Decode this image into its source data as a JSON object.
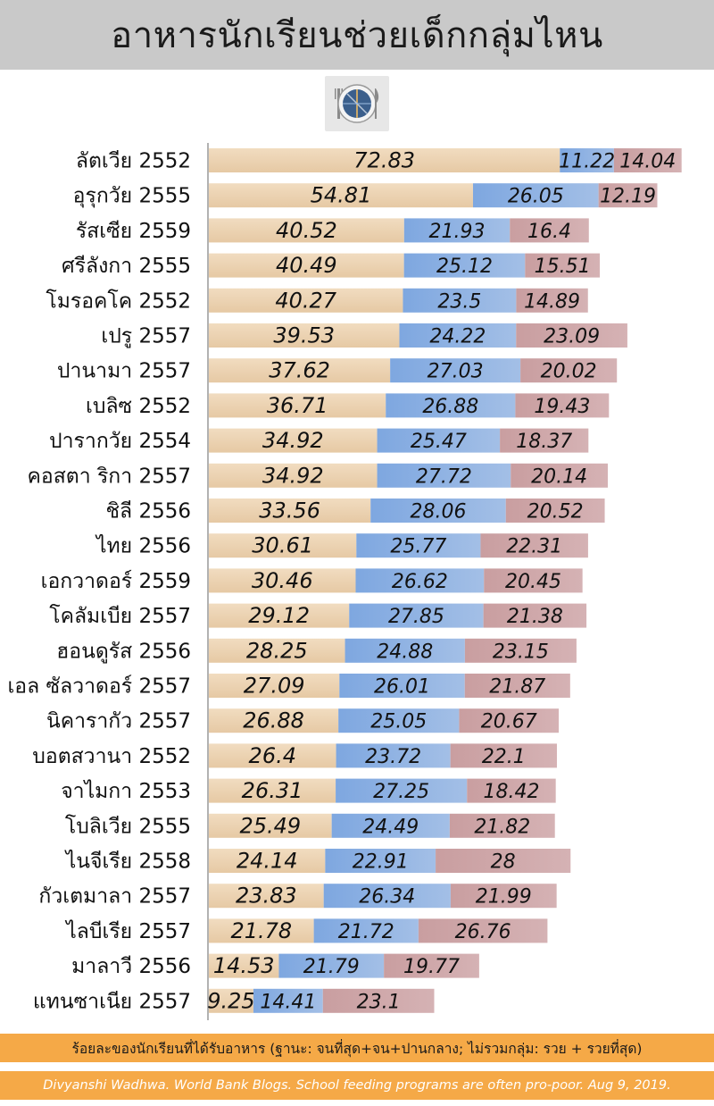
{
  "header": {
    "title": "อาหารนักเรียนช่วยเด็กกลุ่มไหน"
  },
  "icons": {
    "plate": "plate-with-cutlery-icon"
  },
  "colors": {
    "segment1": "#ecd2b0",
    "segment2": "#8fb2e2",
    "segment3": "#cfa6a8",
    "background": "#ffffff",
    "banner": "#f5a947"
  },
  "chart_data": {
    "type": "bar",
    "orientation": "horizontal",
    "stacked": true,
    "categories": [
      "ลัตเวีย 2552",
      "อุรุกวัย 2555",
      "รัสเซีย 2559",
      "ศรีลังกา 2555",
      "โมรอคโค 2552",
      "เปรู 2557",
      "ปานามา 2557",
      "เบลิซ 2552",
      "ปารากวัย 2554",
      "คอสตา ริกา 2557",
      "ชิลี 2556",
      "ไทย 2556",
      "เอกวาดอร์ 2559",
      "โคลัมเบีย 2557",
      "ฮอนดูรัส 2556",
      "เอล ซัลวาดอร์ 2557",
      "นิคารากัว 2557",
      "บอตสวานา 2552",
      "จาไมกา 2553",
      "โบลิเวีย 2555",
      "ไนจีเรีย 2558",
      "กัวเตมาลา 2557",
      "ไลบีเรีย 2557",
      "มาลาวี 2556",
      "แทนซาเนีย 2557"
    ],
    "series": [
      {
        "values": [
          72.83,
          54.81,
          40.52,
          40.49,
          40.27,
          39.53,
          37.62,
          36.71,
          34.92,
          34.92,
          33.56,
          30.61,
          30.46,
          29.12,
          28.25,
          27.09,
          26.88,
          26.4,
          26.31,
          25.49,
          24.14,
          23.83,
          21.78,
          14.53,
          9.25
        ]
      },
      {
        "values": [
          11.22,
          26.05,
          21.93,
          25.12,
          23.5,
          24.22,
          27.03,
          26.88,
          25.47,
          27.72,
          28.06,
          25.77,
          26.62,
          27.85,
          24.88,
          26.01,
          25.05,
          23.72,
          27.25,
          24.49,
          22.91,
          26.34,
          21.72,
          21.79,
          14.41
        ]
      },
      {
        "values": [
          14.04,
          12.19,
          16.4,
          15.51,
          14.89,
          23.09,
          20.02,
          19.43,
          18.37,
          20.14,
          20.52,
          22.31,
          20.45,
          21.38,
          23.15,
          21.87,
          20.67,
          22.1,
          18.42,
          21.82,
          28,
          21.99,
          26.76,
          19.77,
          23.1
        ]
      }
    ],
    "xlim": [
      0,
      100
    ],
    "grid": false,
    "legend": "none"
  },
  "footer": {
    "note": "ร้อยละของนักเรียนที่ได้รับอาหาร (ฐานะ: จนที่สุด+จน+ปานกลาง; ไม่รวมกลุ่ม: รวย + รวยที่สุด)",
    "source": "Divyanshi Wadhwa. World Bank Blogs. School feeding programs are often pro-poor. Aug 9, 2019."
  }
}
